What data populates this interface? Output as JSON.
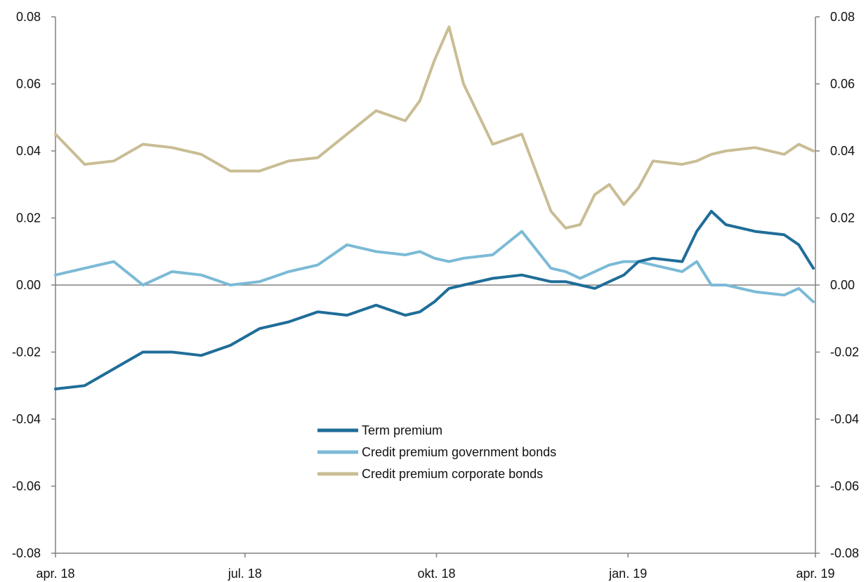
{
  "chart_data": {
    "type": "line",
    "title": "",
    "xlabel": "",
    "ylabel": "",
    "x_tick_labels": [
      "apr. 18",
      "jul. 18",
      "okt. 18",
      "jan. 19",
      "apr. 19"
    ],
    "x_ticks": [
      "2018-04-01",
      "2018-07-01",
      "2018-10-01",
      "2019-01-01",
      "2019-04-01"
    ],
    "xlim": [
      "2018-04-01",
      "2019-04-01"
    ],
    "ylim": [
      -0.08,
      0.08
    ],
    "y_ticks": [
      -0.08,
      -0.06,
      -0.04,
      -0.02,
      0.0,
      0.02,
      0.04,
      0.06,
      0.08
    ],
    "y_tick_labels": [
      "-0.08",
      "-0.06",
      "-0.04",
      "-0.02",
      "0.00",
      "0.02",
      "0.04",
      "0.06",
      "0.08"
    ],
    "secondary_y_axis": true,
    "zero_line": true,
    "grid": false,
    "legend_position": "bottom-center",
    "x": [
      "2018-04-01",
      "2018-04-15",
      "2018-04-29",
      "2018-05-13",
      "2018-05-27",
      "2018-06-10",
      "2018-06-24",
      "2018-07-08",
      "2018-07-22",
      "2018-08-05",
      "2018-08-19",
      "2018-09-02",
      "2018-09-16",
      "2018-09-23",
      "2018-09-30",
      "2018-10-07",
      "2018-10-14",
      "2018-10-28",
      "2018-11-11",
      "2018-11-25",
      "2018-12-02",
      "2018-12-09",
      "2018-12-16",
      "2018-12-23",
      "2018-12-30",
      "2019-01-06",
      "2019-01-13",
      "2019-01-27",
      "2019-02-03",
      "2019-02-10",
      "2019-02-17",
      "2019-03-03",
      "2019-03-17",
      "2019-03-24",
      "2019-03-31"
    ],
    "series": [
      {
        "name": "Term premium",
        "color": "#1f6d99",
        "values": [
          -0.031,
          -0.03,
          -0.025,
          -0.02,
          -0.02,
          -0.021,
          -0.018,
          -0.013,
          -0.011,
          -0.008,
          -0.009,
          -0.006,
          -0.009,
          -0.008,
          -0.005,
          -0.001,
          0.0,
          0.002,
          0.003,
          0.001,
          0.001,
          0.0,
          -0.001,
          0.001,
          0.003,
          0.007,
          0.008,
          0.007,
          0.016,
          0.022,
          0.018,
          0.016,
          0.015,
          0.012,
          0.005
        ]
      },
      {
        "name": "Credit premium government bonds",
        "color": "#7bbad6",
        "values": [
          0.003,
          0.005,
          0.007,
          0.0,
          0.004,
          0.003,
          0.0,
          0.001,
          0.004,
          0.006,
          0.012,
          0.01,
          0.009,
          0.01,
          0.008,
          0.007,
          0.008,
          0.009,
          0.016,
          0.005,
          0.004,
          0.002,
          0.004,
          0.006,
          0.007,
          0.007,
          0.006,
          0.004,
          0.007,
          0.0,
          0.0,
          -0.002,
          -0.003,
          -0.001,
          -0.005
        ]
      },
      {
        "name": "Credit premium corporate bonds",
        "color": "#c9bd94",
        "values": [
          0.045,
          0.036,
          0.037,
          0.042,
          0.041,
          0.039,
          0.034,
          0.034,
          0.037,
          0.038,
          0.045,
          0.052,
          0.049,
          0.055,
          0.067,
          0.077,
          0.06,
          0.042,
          0.045,
          0.022,
          0.017,
          0.018,
          0.027,
          0.03,
          0.024,
          0.029,
          0.037,
          0.036,
          0.037,
          0.039,
          0.04,
          0.041,
          0.039,
          0.042,
          0.04
        ]
      }
    ]
  }
}
